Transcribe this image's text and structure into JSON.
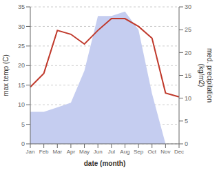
{
  "chart_data": {
    "type": "line",
    "categories": [
      "Jan",
      "Feb",
      "Mar",
      "Apr",
      "May",
      "Jun",
      "Jul",
      "Aug",
      "Sep",
      "Oct",
      "Nov",
      "Dec"
    ],
    "series": [
      {
        "type": "area",
        "axis": "y2",
        "color": "#c5cdf0",
        "values": [
          7.0,
          7.0,
          8.0,
          9.0,
          16.0,
          28.0,
          28.0,
          29.0,
          25.0,
          11.0,
          0.0,
          0.0
        ]
      },
      {
        "type": "line",
        "color": "#c0392b",
        "values": [
          14.5,
          18.0,
          29.0,
          28.0,
          25.5,
          29.0,
          32.0,
          32.0,
          30.0,
          27.0,
          13.0,
          12.0
        ]
      }
    ],
    "ylim": [
      0,
      35
    ],
    "yticks": [
      0,
      5,
      10,
      15,
      20,
      25,
      30,
      35
    ],
    "y2lim": [
      0,
      30
    ],
    "y2ticks": [
      0,
      5,
      10,
      15,
      20,
      25,
      30
    ],
    "xlabel": "date (month)",
    "ylabel": "max temp (C)",
    "y2label": "med. precipitation\n(kg/m2)",
    "grid": true
  }
}
